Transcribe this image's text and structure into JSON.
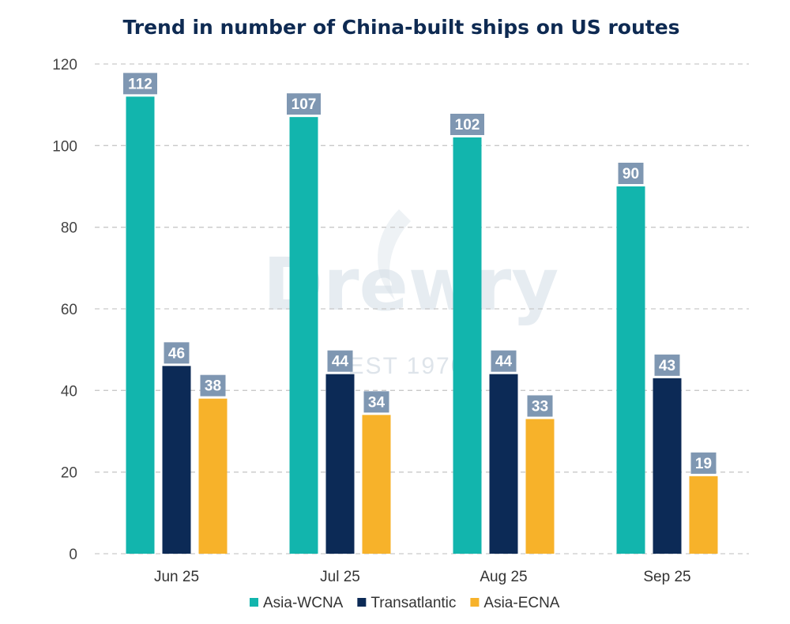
{
  "watermark": {
    "brand": "Drewry",
    "tagline": "EST 1970"
  },
  "chart_data": {
    "type": "bar",
    "title": "Trend in number of China-built ships on US routes",
    "categories": [
      "Jun 25",
      "Jul 25",
      "Aug 25",
      "Sep 25"
    ],
    "series": [
      {
        "name": "Asia-WCNA",
        "color": "#12b5ad",
        "values": [
          112,
          107,
          102,
          90
        ]
      },
      {
        "name": "Transatlantic",
        "color": "#0c2a56",
        "values": [
          46,
          44,
          44,
          43
        ]
      },
      {
        "name": "Asia-ECNA",
        "color": "#f7b22a",
        "values": [
          38,
          34,
          33,
          19
        ]
      }
    ],
    "ylim": [
      0,
      120
    ],
    "yticks": [
      0,
      20,
      40,
      60,
      80,
      100,
      120
    ],
    "grid": true,
    "legend_position": "bottom",
    "data_label_color": "#7f97b2"
  }
}
